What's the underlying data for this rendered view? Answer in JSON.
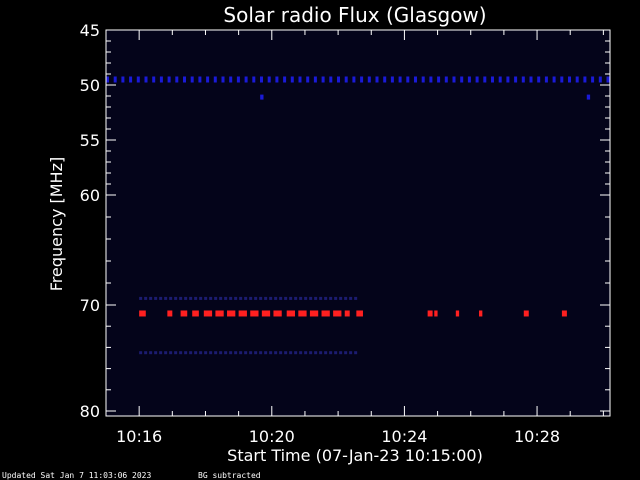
{
  "chart_data": {
    "type": "heatmap",
    "title": "Solar radio Flux (Glasgow)",
    "xlabel": "Start Time (07-Jan-23 10:15:00)",
    "ylabel": "Frequency [MHz]",
    "footer_updated": "Updated Sat Jan  7 11:03:06 2023",
    "footer_note": "BG subtracted",
    "xlim_minutes": [
      0,
      15.2
    ],
    "x_tick_labels": [
      "10:16",
      "10:20",
      "10:24",
      "10:28"
    ],
    "x_tick_minutes": [
      1,
      5,
      9,
      13
    ],
    "ylim": [
      45,
      80
    ],
    "y_ticks": [
      45,
      50,
      55,
      60,
      70,
      80
    ],
    "y_breaks": [
      45,
      50,
      55,
      60,
      70,
      80
    ],
    "colors": {
      "background": "#000000",
      "plot_bg": "#04041a",
      "axis": "#ffffff",
      "blue_line": "#1a1ad8",
      "red_emission": "#ff2020",
      "faint_blue": "#1c1c70"
    },
    "features": [
      {
        "name": "blue-interference-line",
        "freq_mhz": 49.5,
        "intensity": "moderate",
        "color": "blue_line",
        "start_min": 0,
        "end_min": 15.2,
        "dashed": true
      },
      {
        "name": "blue-spot-a",
        "freq_mhz": 51.1,
        "intensity": "moderate",
        "color": "blue_line",
        "start_min": 4.65,
        "end_min": 4.75
      },
      {
        "name": "blue-spot-b",
        "freq_mhz": 51.1,
        "intensity": "moderate",
        "color": "blue_line",
        "start_min": 14.5,
        "end_min": 14.6
      },
      {
        "name": "red-emission-band",
        "freq_mhz": 70.8,
        "intensity": "high",
        "color": "red_emission",
        "segments_min": [
          [
            1.0,
            1.2
          ],
          [
            1.85,
            2.0
          ],
          [
            2.25,
            2.45
          ],
          [
            2.6,
            2.8
          ],
          [
            2.95,
            3.2
          ],
          [
            3.3,
            3.55
          ],
          [
            3.65,
            3.9
          ],
          [
            4.0,
            4.25
          ],
          [
            4.35,
            4.6
          ],
          [
            4.7,
            4.95
          ],
          [
            5.05,
            5.3
          ],
          [
            5.45,
            5.7
          ],
          [
            5.8,
            6.05
          ],
          [
            6.15,
            6.4
          ],
          [
            6.5,
            6.75
          ],
          [
            6.85,
            7.1
          ],
          [
            7.2,
            7.35
          ],
          [
            7.55,
            7.75
          ],
          [
            9.7,
            9.85
          ],
          [
            9.9,
            10.0
          ],
          [
            10.55,
            10.65
          ],
          [
            11.25,
            11.35
          ],
          [
            12.6,
            12.75
          ],
          [
            13.75,
            13.9
          ]
        ]
      },
      {
        "name": "faint-band-upper",
        "freq_mhz": 69.4,
        "intensity": "low",
        "color": "faint_blue",
        "start_min": 1.0,
        "end_min": 7.5
      },
      {
        "name": "faint-band-lower",
        "freq_mhz": 74.5,
        "intensity": "low",
        "color": "faint_blue",
        "start_min": 1.0,
        "end_min": 7.5
      }
    ]
  }
}
